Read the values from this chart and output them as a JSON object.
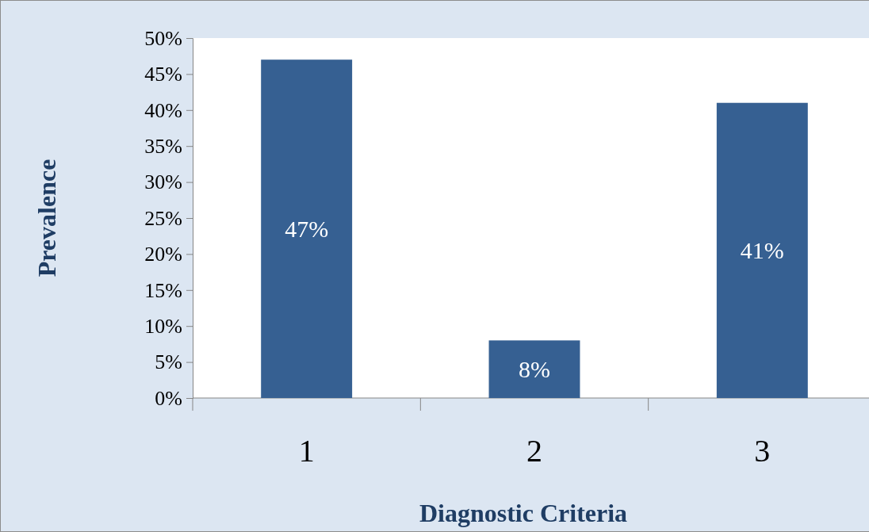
{
  "chart_data": {
    "type": "bar",
    "xlabel": "Diagnostic Criteria",
    "ylabel": "Prevalence",
    "categories": [
      "1",
      "2",
      "3"
    ],
    "values": [
      47,
      8,
      41
    ],
    "color": "#366092",
    "value_labels": [
      "47%",
      "8%",
      "41%"
    ],
    "ylim": [
      0,
      50
    ],
    "yticks": [
      {
        "value": 0,
        "label": "0%"
      },
      {
        "value": 5,
        "label": "5%"
      },
      {
        "value": 10,
        "label": "10%"
      },
      {
        "value": 15,
        "label": "15%"
      },
      {
        "value": 20,
        "label": "20%"
      },
      {
        "value": 25,
        "label": "25%"
      },
      {
        "value": 30,
        "label": "30%"
      },
      {
        "value": 35,
        "label": "35%"
      },
      {
        "value": 40,
        "label": "40%"
      },
      {
        "value": 45,
        "label": "45%"
      },
      {
        "value": 50,
        "label": "50%"
      }
    ],
    "grid": false
  }
}
